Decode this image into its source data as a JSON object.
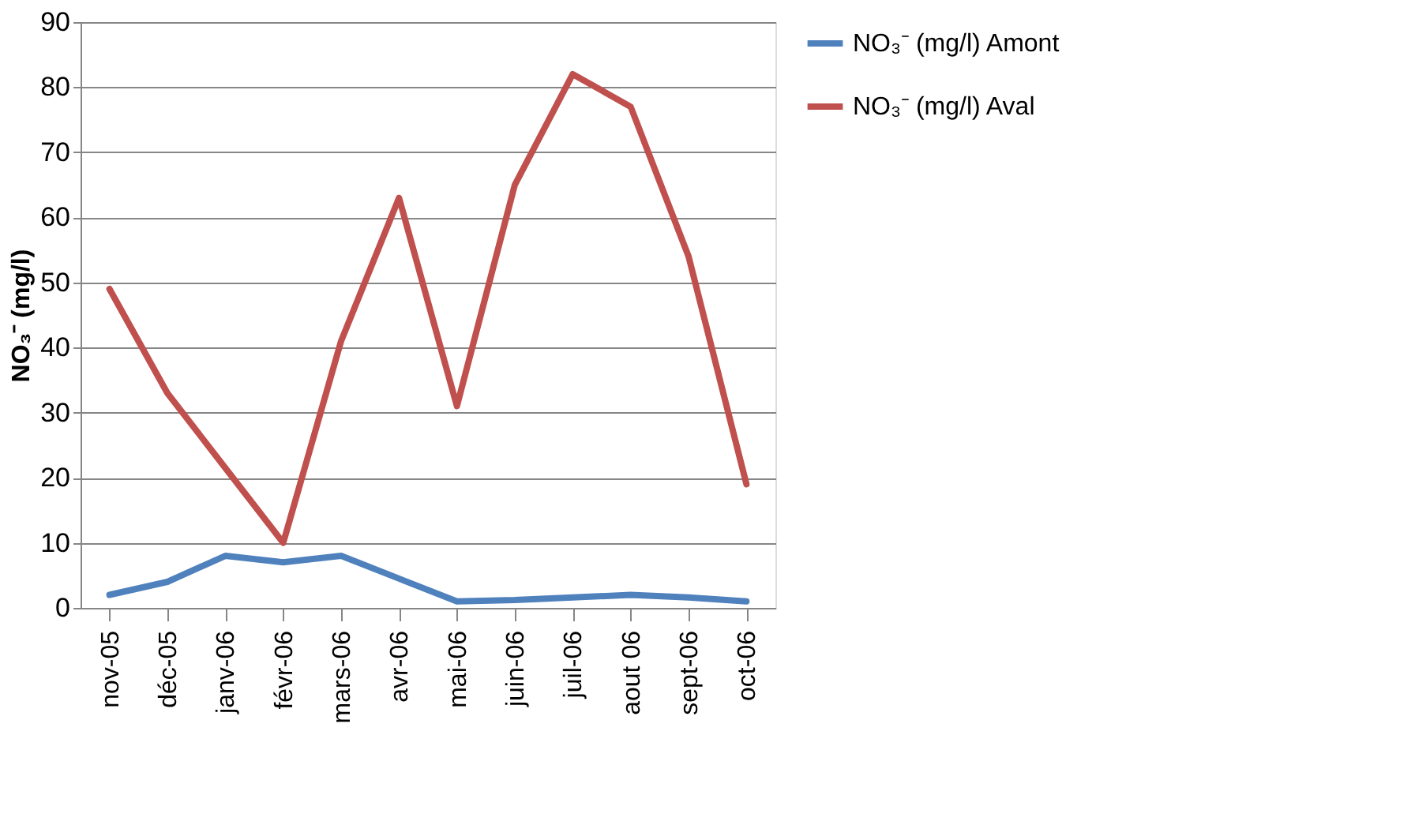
{
  "chart_data": {
    "type": "line",
    "ylabel": "NO₃⁻ (mg/l)",
    "categories": [
      "nov-05",
      "déc-05",
      "janv-06",
      "févr-06",
      "mars-06",
      "avr-06",
      "mai-06",
      "juin-06",
      "juil-06",
      "aout 06",
      "sept-06",
      "oct-06"
    ],
    "series": [
      {
        "name": "NO₃⁻ (mg/l) Amont",
        "color": "#4f81bd",
        "values": [
          2,
          4,
          8,
          7,
          8,
          4.5,
          1,
          1.2,
          1.6,
          2,
          1.6,
          1
        ]
      },
      {
        "name": "NO₃⁻ (mg/l) Aval",
        "color": "#c0504d",
        "values": [
          49,
          33,
          21.5,
          10,
          41,
          63,
          31,
          65,
          82,
          77,
          54,
          19
        ]
      }
    ],
    "ylim": [
      0,
      90
    ],
    "yticks": [
      0,
      10,
      20,
      30,
      40,
      50,
      60,
      70,
      80,
      90
    ],
    "grid": "y",
    "legend": "right"
  }
}
